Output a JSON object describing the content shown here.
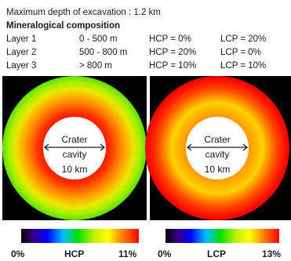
{
  "excavation_note": "Maximum depth of excavation : 1.2 km",
  "composition_heading": "Mineralogical composition",
  "layers": [
    {
      "name": "Layer 1",
      "depth": "0 - 500 m",
      "hcp": "HCP = 0%",
      "lcp": "LCP = 20%"
    },
    {
      "name": "Layer 2",
      "depth": "500 - 800 m",
      "hcp": "HCP = 20%",
      "lcp": "LCP = 0%"
    },
    {
      "name": "Layer 3",
      "depth": "> 800 m",
      "hcp": "HCP = 10%",
      "lcp": "LCP = 10%"
    }
  ],
  "crater_label": [
    "Crater",
    "cavity",
    "10 km"
  ],
  "scales": [
    {
      "min": "0%",
      "name": "HCP",
      "max": "11%"
    },
    {
      "min": "0%",
      "name": "LCP",
      "max": "13%"
    }
  ],
  "colors": {
    "background": "#000000",
    "cavity": "#ffffff"
  }
}
